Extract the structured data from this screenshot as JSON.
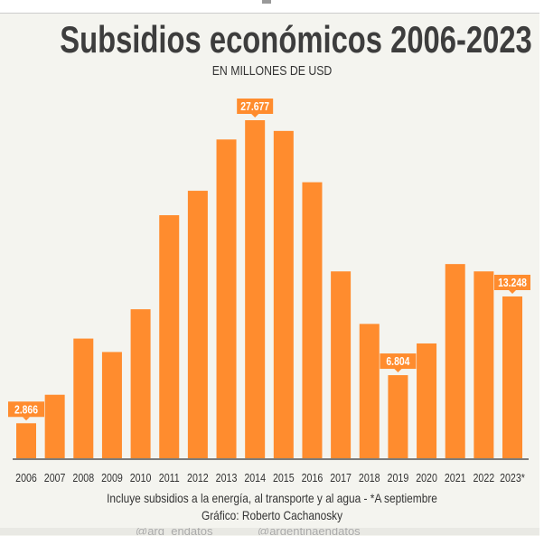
{
  "chart_data": {
    "type": "bar",
    "title": "Subsidios económicos 2006-2023",
    "subtitle": "EN MILLONES DE USD",
    "categories": [
      "2006",
      "2007",
      "2008",
      "2009",
      "2010",
      "2011",
      "2012",
      "2013",
      "2014",
      "2015",
      "2016",
      "2017",
      "2018",
      "2019",
      "2020",
      "2021",
      "2022",
      "2023*"
    ],
    "values": [
      2866,
      5200,
      9800,
      8700,
      12200,
      19900,
      21900,
      26100,
      27677,
      26800,
      22600,
      15300,
      11000,
      6804,
      9400,
      15900,
      15300,
      13248
    ],
    "data_labels": {
      "2006": "2.866",
      "2014": "27.677",
      "2019": "6.804",
      "2023*": "13.248"
    },
    "ylim": [
      0,
      29000
    ],
    "grid": false,
    "bar_color": "#ff8c2e",
    "xlabel": "",
    "ylabel": ""
  },
  "notes": {
    "line1": "Incluye subsidios a la energía, al transporte y al agua - *A septiembre",
    "line2": "Gráfico: Roberto Cachanosky"
  },
  "footer": {
    "twitter": "@arg_endatos",
    "instagram": "@argentinaendatos"
  },
  "colors": {
    "background": "#f4f4ef",
    "bar": "#ff8c2e",
    "text": "#3d3d3d"
  }
}
